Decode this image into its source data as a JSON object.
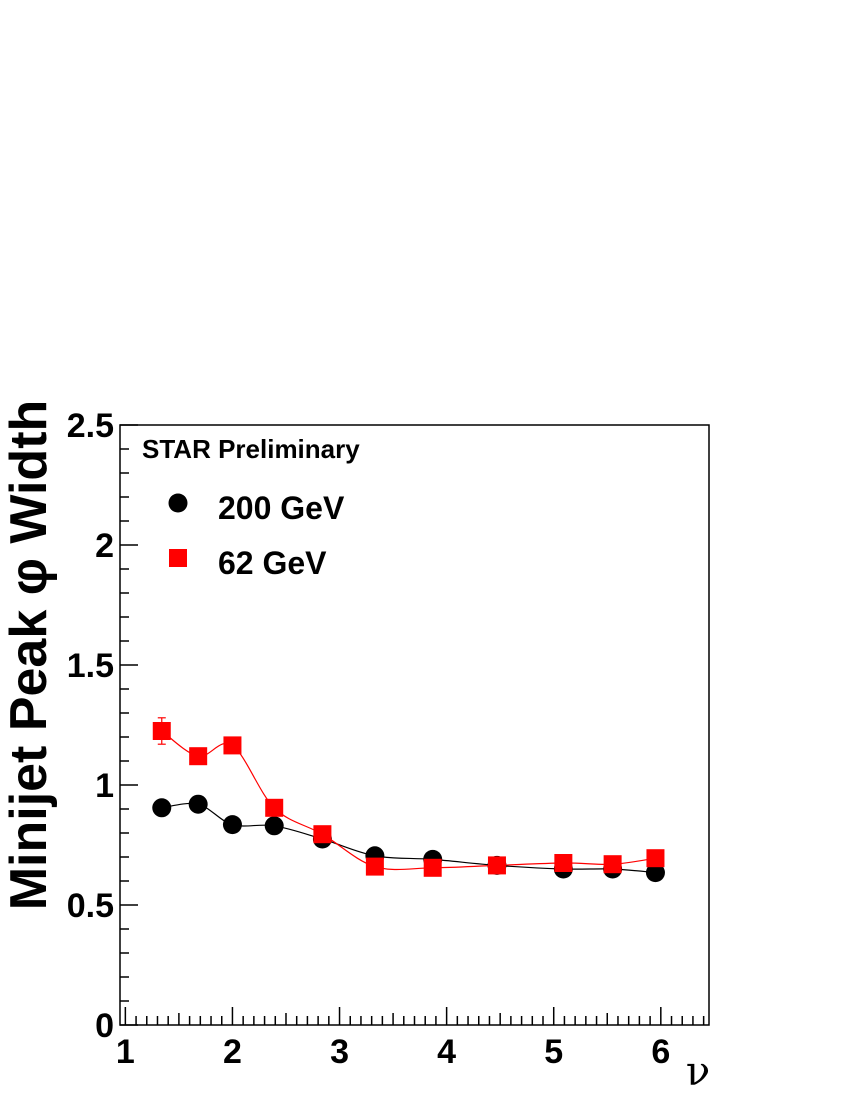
{
  "chart_data": {
    "type": "scatter",
    "annotation": "STAR Preliminary",
    "xlabel": "ν",
    "ylabel": "Minijet Peak φ Width",
    "xlim": [
      0.95,
      6.45
    ],
    "ylim": [
      0,
      2.5
    ],
    "x_ticks": [
      1,
      2,
      3,
      4,
      5,
      6
    ],
    "y_ticks": [
      0,
      0.5,
      1,
      1.5,
      2,
      2.5
    ],
    "x_tick_labels": [
      "1",
      "2",
      "3",
      "4",
      "5",
      "6"
    ],
    "y_tick_labels": [
      "0",
      "0.5",
      "1",
      "1.5",
      "2",
      "2.5"
    ],
    "grid": false,
    "legend_position": "top-left",
    "series": [
      {
        "name": "200 GeV",
        "marker": "circle",
        "color": "#000000",
        "x": [
          1.34,
          1.68,
          2.0,
          2.39,
          2.84,
          3.33,
          3.87,
          4.47,
          5.09,
          5.55,
          5.95
        ],
        "y": [
          0.905,
          0.92,
          0.835,
          0.83,
          0.775,
          0.705,
          0.69,
          0.665,
          0.65,
          0.65,
          0.635
        ],
        "yerr": [
          0,
          0,
          0,
          0,
          0,
          0,
          0,
          0,
          0,
          0,
          0
        ]
      },
      {
        "name": "62 GeV",
        "marker": "square",
        "color": "#ff0000",
        "x": [
          1.34,
          1.68,
          2.0,
          2.39,
          2.84,
          3.33,
          3.87,
          4.47,
          5.09,
          5.55,
          5.95
        ],
        "y": [
          1.225,
          1.12,
          1.165,
          0.905,
          0.795,
          0.66,
          0.655,
          0.665,
          0.675,
          0.67,
          0.695
        ],
        "yerr": [
          0.055,
          0,
          0,
          0,
          0,
          0,
          0,
          0,
          0,
          0,
          0
        ]
      }
    ],
    "colors": {
      "annotation": "#9b1bff",
      "axis": "#000000"
    }
  }
}
